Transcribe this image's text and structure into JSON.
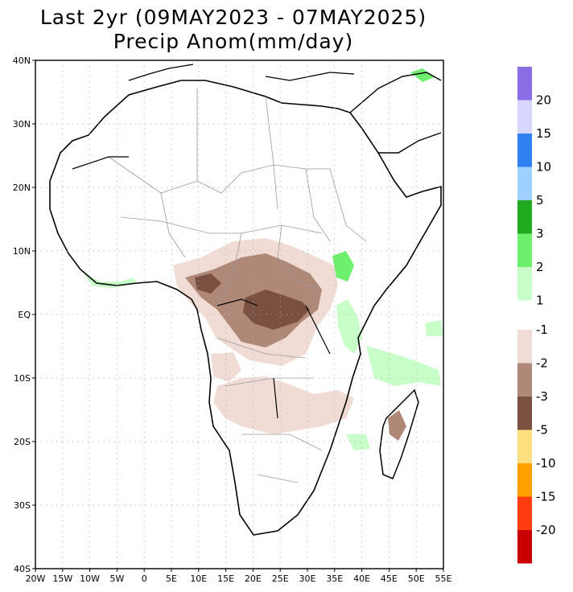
{
  "title": {
    "line1": "Last 2yr (09MAY2023 - 07MAY2025)",
    "line2": "Precip Anom(mm/day)"
  },
  "map": {
    "region": "Africa",
    "lon_range": [
      -20,
      55
    ],
    "lat_range": [
      -40,
      40
    ],
    "grid": true,
    "x_ticks": [
      "20W",
      "15W",
      "10W",
      "5W",
      "0",
      "5E",
      "10E",
      "15E",
      "20E",
      "25E",
      "30E",
      "35E",
      "40E",
      "45E",
      "50E",
      "55E"
    ],
    "y_ticks": [
      "40N",
      "30N",
      "20N",
      "10N",
      "EQ",
      "10S",
      "20S",
      "30S",
      "40S"
    ]
  },
  "colorbar_wet": {
    "labels": [
      "20",
      "15",
      "10",
      "5",
      "3",
      "2",
      "1"
    ],
    "colors": [
      "#8a6ee6",
      "#d6d6ff",
      "#2f80f0",
      "#a0d0ff",
      "#1faa1f",
      "#6ef06e",
      "#c8ffc8"
    ]
  },
  "colorbar_dry": {
    "labels": [
      "-1",
      "-2",
      "-3",
      "-5",
      "-10",
      "-15",
      "-20"
    ],
    "colors": [
      "#f0dcd4",
      "#b08878",
      "#7a5040",
      "#ffe080",
      "#ffa000",
      "#ff3c10",
      "#c80000"
    ]
  },
  "colors": {
    "coast": "#000000",
    "borders": "#999999",
    "grid": "#aaaaaa",
    "wet_light": "#c8ffc8",
    "wet_mid": "#6ef06e",
    "dry_light": "#f0dcd4",
    "dry_mid": "#b08878",
    "dry_dark": "#7a5040"
  }
}
